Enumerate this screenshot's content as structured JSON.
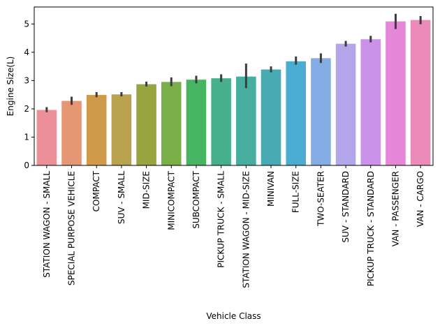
{
  "chart_data": {
    "type": "bar",
    "title": "",
    "xlabel": "Vehicle Class",
    "ylabel": "Engine Size(L)",
    "ylim": [
      0,
      5.6
    ],
    "yticks": [
      0,
      1,
      2,
      3,
      4,
      5
    ],
    "grid": false,
    "legend": "none",
    "categories": [
      "STATION WAGON - SMALL",
      "SPECIAL PURPOSE VEHICLE",
      "COMPACT",
      "SUV - SMALL",
      "MID-SIZE",
      "MINICOMPACT",
      "SUBCOMPACT",
      "PICKUP TRUCK - SMALL",
      "STATION WAGON - MID-SIZE",
      "MINIVAN",
      "FULL-SIZE",
      "TWO-SEATER",
      "SUV - STANDARD",
      "PICKUP TRUCK - STANDARD",
      "VAN - PASSENGER",
      "VAN - CARGO"
    ],
    "values": [
      1.96,
      2.28,
      2.49,
      2.51,
      2.87,
      2.95,
      3.03,
      3.08,
      3.14,
      3.39,
      3.68,
      3.79,
      4.3,
      4.46,
      5.09,
      5.14
    ],
    "error_low": [
      1.88,
      2.14,
      2.41,
      2.44,
      2.79,
      2.8,
      2.9,
      2.95,
      2.73,
      3.29,
      3.56,
      3.62,
      4.2,
      4.35,
      4.82,
      4.99
    ],
    "error_high": [
      2.06,
      2.43,
      2.59,
      2.59,
      2.96,
      3.11,
      3.17,
      3.22,
      3.6,
      3.5,
      3.85,
      3.96,
      4.4,
      4.58,
      5.36,
      5.28
    ],
    "colors": [
      "#ec8f98",
      "#e59673",
      "#cf9a4a",
      "#b8a24d",
      "#98a440",
      "#7aae46",
      "#46b462",
      "#46b08c",
      "#47ae9f",
      "#48aab3",
      "#4bacd1",
      "#84ace5",
      "#b3a5e9",
      "#cb92ea",
      "#e686d8",
      "#ec8bb9"
    ]
  }
}
